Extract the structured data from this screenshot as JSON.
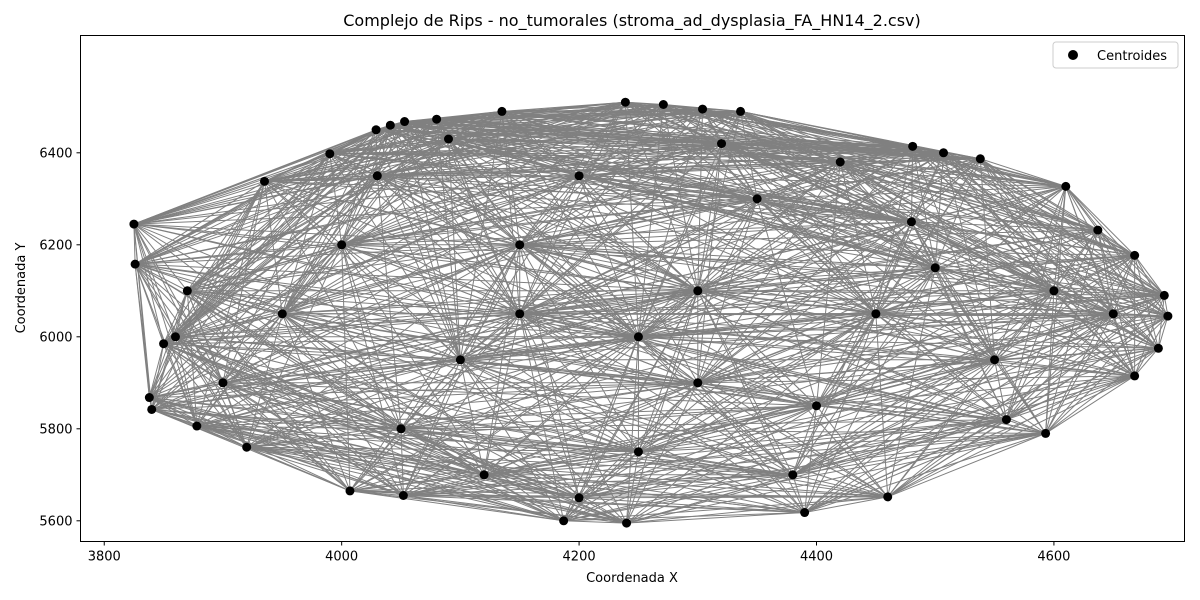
{
  "chart_data": {
    "type": "scatter",
    "title": "Complejo de Rips - no_tumorales (stroma_ad_dysplasia_FA_HN14_2.csv)",
    "xlabel": "Coordenada X",
    "ylabel": "Coordenada Y",
    "xlim": [
      3780,
      4710
    ],
    "ylim": [
      5555,
      6655
    ],
    "xticks": [
      3800,
      4000,
      4200,
      4400,
      4600
    ],
    "yticks": [
      5600,
      5800,
      6000,
      6200,
      6400
    ],
    "grid": false,
    "legend_position": "top-right",
    "point_color": "#000000",
    "edge_color": "#808080",
    "series": [
      {
        "name": "Centroides",
        "points": [
          [
            3825,
            6245
          ],
          [
            3826,
            6158
          ],
          [
            3838,
            5868
          ],
          [
            3840,
            5842
          ],
          [
            3850,
            5985
          ],
          [
            3878,
            5806
          ],
          [
            3920,
            5760
          ],
          [
            4007,
            5665
          ],
          [
            4052,
            5655
          ],
          [
            4187,
            5600
          ],
          [
            4240,
            5595
          ],
          [
            4390,
            5618
          ],
          [
            4460,
            5652
          ],
          [
            4593,
            5790
          ],
          [
            4668,
            5915
          ],
          [
            4688,
            5975
          ],
          [
            4696,
            6045
          ],
          [
            4693,
            6090
          ],
          [
            4668,
            6177
          ],
          [
            4637,
            6232
          ],
          [
            4610,
            6327
          ],
          [
            4538,
            6387
          ],
          [
            4507,
            6400
          ],
          [
            4481,
            6414
          ],
          [
            4336,
            6490
          ],
          [
            4304,
            6495
          ],
          [
            4271,
            6505
          ],
          [
            4239,
            6510
          ],
          [
            4135,
            6490
          ],
          [
            4080,
            6473
          ],
          [
            4053,
            6468
          ],
          [
            4041,
            6460
          ],
          [
            4029,
            6450
          ],
          [
            3935,
            6338
          ],
          [
            3990,
            6398
          ],
          [
            4150,
            6200
          ],
          [
            4300,
            6100
          ],
          [
            4100,
            5950
          ],
          [
            4400,
            5850
          ],
          [
            4250,
            5750
          ],
          [
            3950,
            6050
          ],
          [
            4500,
            6150
          ],
          [
            4550,
            5950
          ],
          [
            4200,
            6350
          ],
          [
            3900,
            5900
          ],
          [
            4050,
            5800
          ],
          [
            4350,
            6300
          ],
          [
            4450,
            6050
          ],
          [
            4000,
            6200
          ],
          [
            4300,
            5900
          ],
          [
            4150,
            6050
          ],
          [
            4250,
            6000
          ],
          [
            4380,
            5700
          ],
          [
            4120,
            5700
          ],
          [
            4600,
            6100
          ],
          [
            4480,
            6250
          ],
          [
            3870,
            6100
          ],
          [
            4030,
            6350
          ],
          [
            4200,
            5650
          ],
          [
            4560,
            5820
          ],
          [
            4320,
            6420
          ],
          [
            4090,
            6430
          ],
          [
            3860,
            6000
          ],
          [
            4650,
            6050
          ],
          [
            4420,
            6380
          ]
        ]
      }
    ],
    "edge_threshold": 560
  }
}
